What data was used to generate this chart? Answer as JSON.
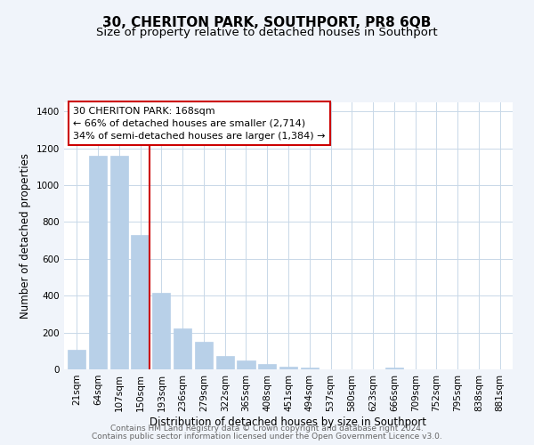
{
  "title": "30, CHERITON PARK, SOUTHPORT, PR8 6QB",
  "subtitle": "Size of property relative to detached houses in Southport",
  "xlabel": "Distribution of detached houses by size in Southport",
  "ylabel": "Number of detached properties",
  "categories": [
    "21sqm",
    "64sqm",
    "107sqm",
    "150sqm",
    "193sqm",
    "236sqm",
    "279sqm",
    "322sqm",
    "365sqm",
    "408sqm",
    "451sqm",
    "494sqm",
    "537sqm",
    "580sqm",
    "623sqm",
    "666sqm",
    "709sqm",
    "752sqm",
    "795sqm",
    "838sqm",
    "881sqm"
  ],
  "values": [
    107,
    1160,
    1160,
    730,
    415,
    220,
    148,
    73,
    50,
    30,
    15,
    12,
    0,
    0,
    0,
    8,
    0,
    0,
    0,
    0,
    0
  ],
  "bar_color": "#b8d0e8",
  "bar_edge_color": "#b8d0e8",
  "vline_x_index": 3,
  "vline_color": "#cc0000",
  "annotation_title": "30 CHERITON PARK: 168sqm",
  "annotation_line1": "← 66% of detached houses are smaller (2,714)",
  "annotation_line2": "34% of semi-detached houses are larger (1,384) →",
  "box_edge_color": "#cc0000",
  "ylim": [
    0,
    1450
  ],
  "yticks": [
    0,
    200,
    400,
    600,
    800,
    1000,
    1200,
    1400
  ],
  "footnote1": "Contains HM Land Registry data © Crown copyright and database right 2024.",
  "footnote2": "Contains public sector information licensed under the Open Government Licence v3.0.",
  "bg_color": "#f0f4fa",
  "plot_bg_color": "#ffffff",
  "grid_color": "#c8d8e8",
  "title_fontsize": 11,
  "subtitle_fontsize": 9.5,
  "label_fontsize": 8.5,
  "tick_fontsize": 7.5,
  "annotation_fontsize": 8,
  "footnote_fontsize": 6.5
}
